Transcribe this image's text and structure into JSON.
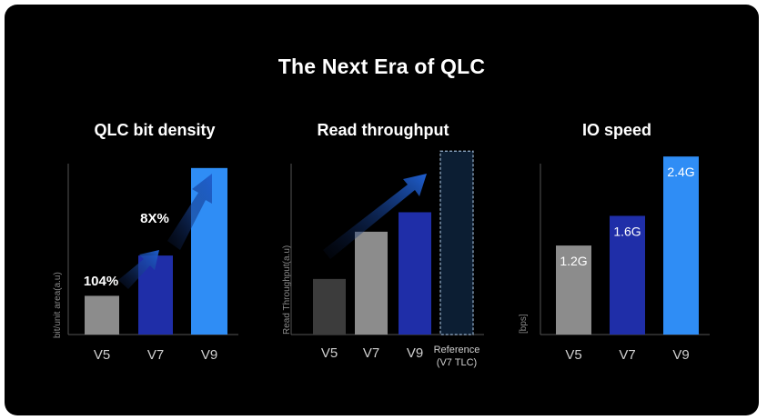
{
  "title": "The Next Era of QLC",
  "colors": {
    "background": "#000000",
    "gray_dark": "#3c3c3c",
    "gray": "#8c8c8c",
    "navy": "#1f2ea8",
    "blue": "#2f8df5",
    "arrow": "#1f5fd0"
  },
  "chart_data": [
    {
      "type": "bar",
      "title": "QLC bit density",
      "ylabel": "bit/unit area(a.u)",
      "categories": [
        "V5",
        "V7",
        "V9"
      ],
      "values": [
        1.0,
        2.04,
        4.3
      ],
      "colors": [
        "#8c8c8c",
        "#1f2ea8",
        "#2f8df5"
      ],
      "ylim": [
        0,
        5
      ],
      "annotations": [
        "104%",
        "8X%"
      ]
    },
    {
      "type": "bar",
      "title": "Read throughput",
      "ylabel": "Read Throughput(a.u)",
      "categories": [
        "V5",
        "V7",
        "V9",
        "Reference\n(V7 TLC)"
      ],
      "values": [
        1.0,
        1.85,
        2.2,
        3.3
      ],
      "colors": [
        "#3c3c3c",
        "#8c8c8c",
        "#1f2ea8",
        "#0c1e33"
      ],
      "ylim": [
        0,
        3.5
      ],
      "reference_category": "Reference\n(V7 TLC)"
    },
    {
      "type": "bar",
      "title": "IO speed",
      "ylabel": "[bps]",
      "categories": [
        "V5",
        "V7",
        "V9"
      ],
      "values": [
        1.2,
        1.6,
        2.4
      ],
      "data_labels": [
        "1.2G",
        "1.6G",
        "2.4G"
      ],
      "colors": [
        "#8c8c8c",
        "#1f2ea8",
        "#2f8df5"
      ],
      "ylim": [
        0,
        2.5
      ]
    }
  ]
}
